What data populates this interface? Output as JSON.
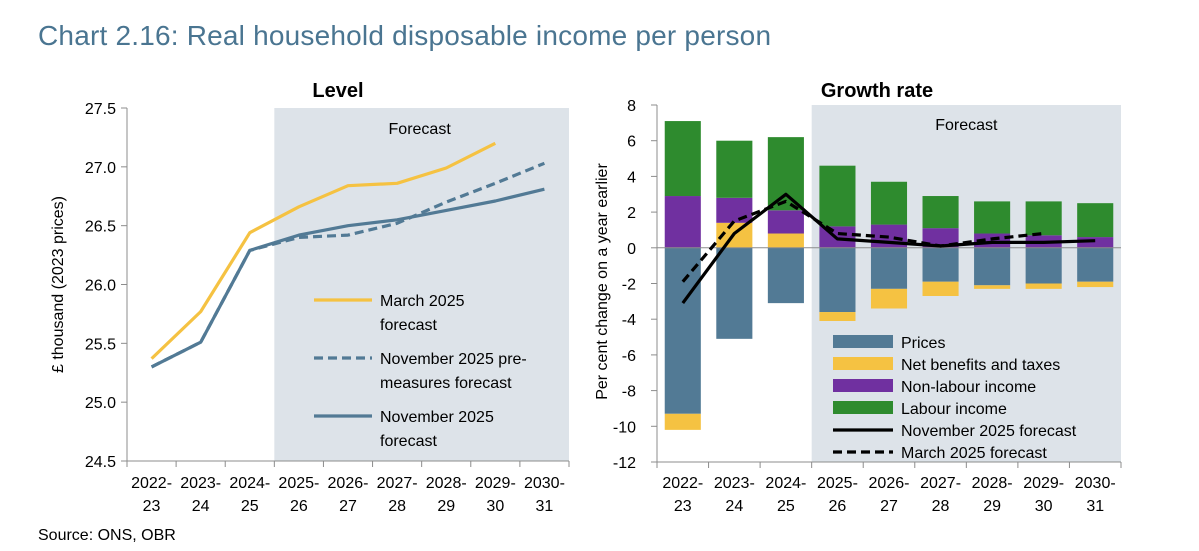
{
  "title": "Chart 2.16: Real household disposable income per person",
  "source": "Source: ONS, OBR",
  "colors": {
    "forecast_shade": "#dde3e9",
    "march_line": "#f5c242",
    "nov_line": "#527a95",
    "prices": "#527a95",
    "net_benefits": "#f5c242",
    "non_labour": "#7030a0",
    "labour": "#2e8b2e",
    "growth_lines": "#000000"
  },
  "chart_data": [
    {
      "type": "line",
      "title": "Level",
      "ylabel": "£ thousand (2023 prices)",
      "ylim": [
        24.5,
        27.5
      ],
      "yticks": [
        "24.5",
        "25.0",
        "25.5",
        "26.0",
        "26.5",
        "27.0",
        "27.5"
      ],
      "categories": [
        [
          "2022-",
          "23"
        ],
        [
          "2023-",
          "24"
        ],
        [
          "2024-",
          "25"
        ],
        [
          "2025-",
          "26"
        ],
        [
          "2026-",
          "27"
        ],
        [
          "2027-",
          "28"
        ],
        [
          "2028-",
          "29"
        ],
        [
          "2029-",
          "30"
        ],
        [
          "2030-",
          "31"
        ]
      ],
      "forecast_label": "Forecast",
      "series": [
        {
          "name": [
            "March 2025",
            "forecast"
          ],
          "values": [
            25.37,
            25.77,
            26.44,
            26.66,
            26.84,
            26.86,
            26.99,
            27.2,
            null
          ],
          "style": "solid",
          "color_key": "march_line"
        },
        {
          "name": [
            "November 2025 pre-",
            "measures forecast"
          ],
          "values": [
            25.3,
            25.51,
            26.29,
            26.4,
            26.42,
            26.52,
            26.7,
            26.86,
            27.03
          ],
          "style": "dashed",
          "color_key": "nov_line"
        },
        {
          "name": [
            "November 2025",
            "forecast"
          ],
          "values": [
            25.3,
            25.51,
            26.29,
            26.42,
            26.5,
            26.55,
            26.63,
            26.71,
            26.81
          ],
          "style": "solid",
          "color_key": "nov_line"
        }
      ]
    },
    {
      "type": "bar",
      "title": "Growth rate",
      "ylabel": "Per cent change on a year earlier",
      "ylim": [
        -12,
        8
      ],
      "yticks": [
        "-12",
        "-10",
        "-8",
        "-6",
        "-4",
        "-2",
        "0",
        "2",
        "4",
        "6",
        "8"
      ],
      "categories": [
        [
          "2022-",
          "23"
        ],
        [
          "2023-",
          "24"
        ],
        [
          "2024-",
          "25"
        ],
        [
          "2025-",
          "26"
        ],
        [
          "2026-",
          "27"
        ],
        [
          "2027-",
          "28"
        ],
        [
          "2028-",
          "29"
        ],
        [
          "2029-",
          "30"
        ],
        [
          "2030-",
          "31"
        ]
      ],
      "forecast_label": "Forecast",
      "series": [
        {
          "name": "Prices",
          "values": [
            -9.3,
            -5.1,
            -3.1,
            -3.6,
            -2.3,
            -1.9,
            -2.1,
            -2.0,
            -1.9
          ],
          "color_key": "prices"
        },
        {
          "name": "Net benefits and taxes",
          "values": [
            -0.9,
            1.4,
            0.8,
            -0.5,
            -1.1,
            -0.8,
            -0.2,
            -0.3,
            -0.3
          ],
          "color_key": "net_benefits"
        },
        {
          "name": "Non-labour income",
          "values": [
            2.9,
            1.4,
            1.3,
            1.2,
            1.3,
            1.1,
            0.8,
            0.7,
            0.6
          ],
          "color_key": "non_labour"
        },
        {
          "name": "Labour income",
          "values": [
            4.2,
            3.2,
            4.1,
            3.4,
            2.4,
            1.8,
            1.8,
            1.9,
            1.9
          ],
          "color_key": "labour"
        }
      ],
      "lines": [
        {
          "name": "November 2025 forecast",
          "values": [
            -3.1,
            0.8,
            3.0,
            0.5,
            0.3,
            0.1,
            0.3,
            0.3,
            0.4
          ],
          "style": "solid"
        },
        {
          "name": "March 2025 forecast",
          "values": [
            -1.9,
            1.5,
            2.6,
            0.8,
            0.6,
            0.1,
            0.5,
            0.8,
            null
          ],
          "style": "dashed"
        }
      ]
    }
  ]
}
